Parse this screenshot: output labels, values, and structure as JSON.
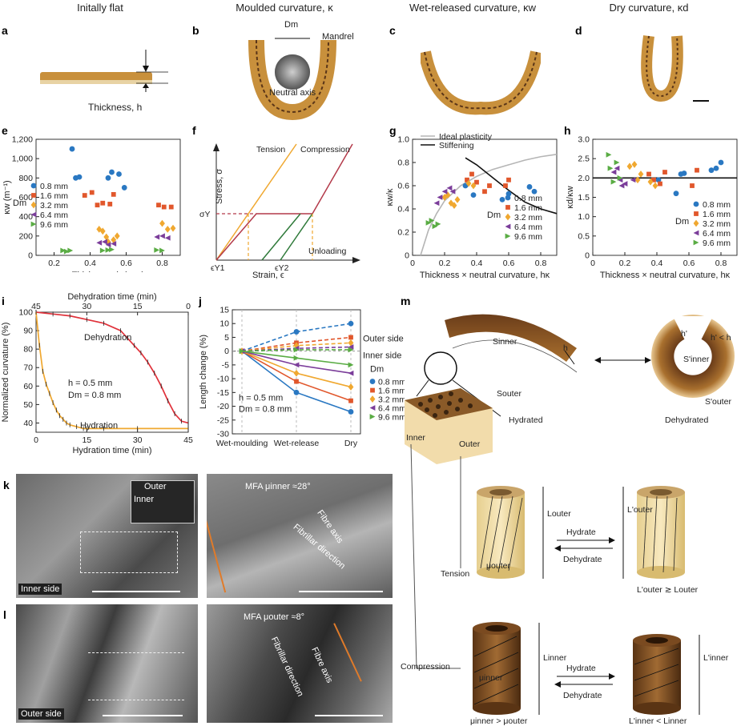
{
  "panels": {
    "a": {
      "letter": "a",
      "title": "Initally flat",
      "label": "Thickness, h"
    },
    "b": {
      "letter": "b",
      "title": "Moulded curvature, κ",
      "dm_label": "Dm",
      "mandrel_label": "Mandrel",
      "axis_label": "Neutral axis"
    },
    "c": {
      "letter": "c",
      "title": "Wet-released curvature, κw"
    },
    "d": {
      "letter": "d",
      "title": "Dry curvature, κd"
    },
    "e": {
      "letter": "e"
    },
    "f": {
      "letter": "f",
      "tension": "Tension",
      "compression": "Compression",
      "unloading": "Unloading",
      "ylabel": "Stress, σ",
      "xlabel": "Strain, ϵ",
      "sigma_y": "σY",
      "eps_y1": "ϵY1",
      "eps_y2": "ϵY2"
    },
    "g": {
      "letter": "g",
      "legend_ideal": "Ideal plasticity",
      "legend_stiff": "Stiffening"
    },
    "h": {
      "letter": "h"
    },
    "i": {
      "letter": "i",
      "dehydration_label": "Dehydration",
      "hydration_label": "Hydration",
      "h_note": "h = 0.5 mm",
      "dm_note": "Dm = 0.8 mm"
    },
    "j": {
      "letter": "j",
      "outer_side": "Outer side",
      "inner_side": "Inner side",
      "dm_head": "Dm",
      "h_note": "h = 0.5 mm",
      "dm_note": "Dm = 0.8 mm"
    },
    "k": {
      "letter": "k",
      "inner": "Inner",
      "outer": "Outer",
      "side": "Inner side",
      "mfa": "MFA μinner ≈28°",
      "fibre_axis": "Fibre axis",
      "fibrillar": "Fibrillar direction"
    },
    "l": {
      "letter": "l",
      "side": "Outer side",
      "mfa": "MFA μouter ≈8°",
      "fibre_axis": "Fibre axis",
      "fibrillar": "Fibrillar direction"
    },
    "m": {
      "letter": "m",
      "s_inner": "Sinner",
      "h": "h",
      "s_outer": "Souter",
      "hydrated": "Hydrated",
      "h_prime": "h'",
      "h_prime_lt": "h' < h",
      "s_prime_inner": "S'inner",
      "s_prime_outer": "S'outer",
      "dehydrated": "Dehydrated",
      "inner": "Inner",
      "outer": "Outer",
      "l_outer": "Louter",
      "l_prime_outer": "L'outer",
      "mu_outer": "μouter",
      "hydrate": "Hydrate",
      "dehydrate": "Dehydrate",
      "tension": "Tension",
      "relation_outer": "L'outer ≳ Louter",
      "l_inner": "Linner",
      "l_prime_inner": "L'inner",
      "mu_inner": "μinner",
      "compression": "Compression",
      "relation_mu": "μinner > μouter",
      "relation_inner": "L'inner < Linner"
    }
  },
  "colors": {
    "d08": "#2a78c2",
    "d16": "#e1572c",
    "d32": "#f0a830",
    "d64": "#7b3d9a",
    "d96": "#5aac44",
    "tension": "#f0a830",
    "compression": "#b33a4a",
    "green": "#2f7a3a",
    "ideal": "#b5b5b5",
    "stiff": "#111111"
  },
  "chart_data": [
    {
      "id": "e",
      "type": "scatter",
      "xlabel": "Thickness, h (mm)",
      "ylabel": "κw (m⁻¹)",
      "xlim": [
        0.1,
        0.9
      ],
      "ylim": [
        0,
        1200
      ],
      "xticks": [
        "0.2",
        "0.4",
        "0.6",
        "0.8"
      ],
      "yticks": [
        "0",
        "200",
        "400",
        "600",
        "800",
        "1,000",
        "1,200"
      ],
      "legend_title": "Dm",
      "series": [
        {
          "name": "0.8 mm",
          "marker": "circle",
          "points": [
            [
              0.3,
              1100
            ],
            [
              0.32,
              800
            ],
            [
              0.34,
              810
            ],
            [
              0.5,
              800
            ],
            [
              0.52,
              860
            ],
            [
              0.56,
              840
            ],
            [
              0.59,
              700
            ]
          ]
        },
        {
          "name": "1.6 mm",
          "marker": "square",
          "points": [
            [
              0.37,
              620
            ],
            [
              0.41,
              650
            ],
            [
              0.44,
              520
            ],
            [
              0.47,
              540
            ],
            [
              0.51,
              530
            ],
            [
              0.53,
              630
            ],
            [
              0.78,
              520
            ],
            [
              0.81,
              500
            ],
            [
              0.85,
              500
            ]
          ]
        },
        {
          "name": "3.2 mm",
          "marker": "diamond",
          "points": [
            [
              0.45,
              270
            ],
            [
              0.47,
              250
            ],
            [
              0.49,
              190
            ],
            [
              0.5,
              140
            ],
            [
              0.53,
              160
            ],
            [
              0.55,
              200
            ],
            [
              0.8,
              330
            ],
            [
              0.83,
              270
            ],
            [
              0.86,
              280
            ]
          ]
        },
        {
          "name": "6.4 mm",
          "marker": "triangle-left",
          "points": [
            [
              0.45,
              130
            ],
            [
              0.48,
              140
            ],
            [
              0.5,
              110
            ],
            [
              0.53,
              120
            ],
            [
              0.77,
              190
            ],
            [
              0.8,
              200
            ],
            [
              0.83,
              180
            ]
          ]
        },
        {
          "name": "9.6 mm",
          "marker": "triangle-right",
          "points": [
            [
              0.25,
              50
            ],
            [
              0.27,
              40
            ],
            [
              0.29,
              50
            ],
            [
              0.47,
              50
            ],
            [
              0.5,
              55
            ],
            [
              0.52,
              60
            ],
            [
              0.77,
              55
            ],
            [
              0.8,
              50
            ]
          ]
        }
      ]
    },
    {
      "id": "g",
      "type": "scatter",
      "xlabel": "Thickness × neutral curvature, hκ",
      "ylabel": "κw/κ",
      "xlim": [
        0,
        0.9
      ],
      "ylim": [
        0,
        1.0
      ],
      "xticks": [
        "0",
        "0.2",
        "0.4",
        "0.6",
        "0.8"
      ],
      "yticks": [
        "0",
        "0.2",
        "0.4",
        "0.6",
        "0.8",
        "1.0"
      ],
      "legend_title": "Dm",
      "series": [
        {
          "name": "0.8 mm",
          "marker": "circle",
          "points": [
            [
              0.33,
              0.6
            ],
            [
              0.38,
              0.52
            ],
            [
              0.56,
              0.48
            ],
            [
              0.6,
              0.53
            ],
            [
              0.73,
              0.59
            ],
            [
              0.76,
              0.55
            ]
          ]
        },
        {
          "name": "1.6 mm",
          "marker": "square",
          "points": [
            [
              0.34,
              0.65
            ],
            [
              0.37,
              0.7
            ],
            [
              0.4,
              0.63
            ],
            [
              0.45,
              0.55
            ],
            [
              0.48,
              0.6
            ],
            [
              0.58,
              0.6
            ],
            [
              0.6,
              0.65
            ]
          ]
        },
        {
          "name": "3.2 mm",
          "marker": "diamond",
          "points": [
            [
              0.2,
              0.5
            ],
            [
              0.22,
              0.52
            ],
            [
              0.24,
              0.45
            ],
            [
              0.26,
              0.43
            ],
            [
              0.28,
              0.48
            ],
            [
              0.35,
              0.62
            ],
            [
              0.38,
              0.6
            ]
          ]
        },
        {
          "name": "6.4 mm",
          "marker": "triangle-left",
          "points": [
            [
              0.15,
              0.45
            ],
            [
              0.17,
              0.5
            ],
            [
              0.2,
              0.55
            ],
            [
              0.23,
              0.58
            ],
            [
              0.25,
              0.55
            ]
          ]
        },
        {
          "name": "9.6 mm",
          "marker": "triangle-right",
          "points": [
            [
              0.1,
              0.28
            ],
            [
              0.12,
              0.3
            ],
            [
              0.14,
              0.25
            ],
            [
              0.16,
              0.27
            ]
          ]
        }
      ],
      "curves": [
        {
          "name": "Ideal plasticity",
          "points": [
            [
              0.05,
              0.0
            ],
            [
              0.1,
              0.22
            ],
            [
              0.15,
              0.36
            ],
            [
              0.2,
              0.47
            ],
            [
              0.3,
              0.6
            ],
            [
              0.4,
              0.68
            ],
            [
              0.5,
              0.74
            ],
            [
              0.6,
              0.78
            ],
            [
              0.7,
              0.82
            ],
            [
              0.8,
              0.85
            ],
            [
              0.9,
              0.87
            ]
          ]
        },
        {
          "name": "Stiffening",
          "points": [
            [
              0.33,
              0.84
            ],
            [
              0.4,
              0.78
            ],
            [
              0.5,
              0.67
            ],
            [
              0.6,
              0.56
            ],
            [
              0.7,
              0.46
            ],
            [
              0.8,
              0.4
            ],
            [
              0.9,
              0.36
            ]
          ]
        }
      ]
    },
    {
      "id": "h",
      "type": "scatter",
      "xlabel": "Thickness × neutral curvature, hκ",
      "ylabel": "κd/κw",
      "xlim": [
        0,
        0.9
      ],
      "ylim": [
        0,
        3.0
      ],
      "xticks": [
        "0",
        "0.2",
        "0.4",
        "0.6",
        "0.8"
      ],
      "yticks": [
        "0",
        "0.5",
        "1.0",
        "1.5",
        "2.0",
        "2.5",
        "3.0"
      ],
      "reference_line": 2.0,
      "legend_title": "Dm",
      "series": [
        {
          "name": "0.8 mm",
          "marker": "circle",
          "points": [
            [
              0.41,
              1.95
            ],
            [
              0.52,
              1.6
            ],
            [
              0.55,
              2.1
            ],
            [
              0.57,
              2.12
            ],
            [
              0.74,
              2.2
            ],
            [
              0.77,
              2.25
            ],
            [
              0.8,
              2.4
            ]
          ]
        },
        {
          "name": "1.6 mm",
          "marker": "square",
          "points": [
            [
              0.35,
              2.1
            ],
            [
              0.38,
              1.95
            ],
            [
              0.42,
              1.85
            ],
            [
              0.45,
              2.15
            ],
            [
              0.62,
              1.8
            ],
            [
              0.65,
              2.2
            ]
          ]
        },
        {
          "name": "3.2 mm",
          "marker": "diamond",
          "points": [
            [
              0.23,
              2.3
            ],
            [
              0.26,
              2.35
            ],
            [
              0.28,
              1.95
            ],
            [
              0.3,
              2.1
            ],
            [
              0.36,
              1.9
            ],
            [
              0.39,
              1.8
            ]
          ]
        },
        {
          "name": "6.4 mm",
          "marker": "triangle-left",
          "points": [
            [
              0.13,
              2.15
            ],
            [
              0.15,
              2.25
            ],
            [
              0.17,
              1.95
            ],
            [
              0.18,
              1.8
            ],
            [
              0.2,
              1.85
            ],
            [
              0.25,
              1.95
            ]
          ]
        },
        {
          "name": "9.6 mm",
          "marker": "triangle-right",
          "points": [
            [
              0.1,
              2.6
            ],
            [
              0.11,
              2.25
            ],
            [
              0.13,
              1.9
            ],
            [
              0.15,
              2.4
            ],
            [
              0.17,
              2.0
            ]
          ]
        }
      ]
    },
    {
      "id": "i",
      "type": "line",
      "xlabel": "Hydration time (min)",
      "x2label": "Dehydration time (min)",
      "ylabel": "Normalized curvature (%)",
      "xlim": [
        0,
        45
      ],
      "ylim": [
        35,
        100
      ],
      "xticks": [
        "0",
        "15",
        "30",
        "45"
      ],
      "x2ticks": [
        "45",
        "30",
        "15",
        "0"
      ],
      "yticks": [
        "40",
        "50",
        "60",
        "70",
        "80",
        "90",
        "100"
      ],
      "series": [
        {
          "name": "Dehydration",
          "x": [
            0,
            5,
            10,
            15,
            20,
            25,
            27,
            29,
            31,
            33,
            35,
            37,
            39,
            41,
            43,
            45
          ],
          "y": [
            100,
            99,
            98,
            96,
            94,
            90,
            86,
            82,
            78,
            73,
            67,
            60,
            52,
            45,
            41,
            40
          ]
        },
        {
          "name": "Hydration",
          "x": [
            0,
            1,
            2,
            3,
            4,
            5,
            6,
            7,
            8,
            9,
            10,
            12,
            14,
            15,
            20,
            30,
            45
          ],
          "y": [
            100,
            82,
            68,
            61,
            56,
            51,
            47,
            44,
            42,
            40,
            39,
            38,
            37,
            37,
            37,
            37,
            37
          ]
        }
      ]
    },
    {
      "id": "j",
      "type": "line",
      "ylabel": "Length change (%)",
      "categories": [
        "Wet-moulding",
        "Wet-release",
        "Dry"
      ],
      "ylim": [
        -30,
        15
      ],
      "yticks": [
        "-30",
        "-25",
        "-20",
        "-15",
        "-10",
        "-5",
        "0",
        "5",
        "10",
        "15"
      ],
      "series": [
        {
          "name": "0.8 mm",
          "side": "outer",
          "values": [
            0,
            7,
            10
          ]
        },
        {
          "name": "1.6 mm",
          "side": "outer",
          "values": [
            0,
            3,
            5
          ]
        },
        {
          "name": "3.2 mm",
          "side": "outer",
          "values": [
            0,
            2,
            3
          ]
        },
        {
          "name": "6.4 mm",
          "side": "outer",
          "values": [
            0,
            1,
            1.5
          ]
        },
        {
          "name": "9.6 mm",
          "side": "outer",
          "values": [
            0,
            0.5,
            0.5
          ]
        },
        {
          "name": "0.8 mm",
          "side": "inner",
          "values": [
            0,
            -15,
            -22
          ]
        },
        {
          "name": "1.6 mm",
          "side": "inner",
          "values": [
            0,
            -11,
            -18
          ]
        },
        {
          "name": "3.2 mm",
          "side": "inner",
          "values": [
            0,
            -8,
            -13
          ]
        },
        {
          "name": "6.4 mm",
          "side": "inner",
          "values": [
            0,
            -5,
            -8
          ]
        },
        {
          "name": "9.6 mm",
          "side": "inner",
          "values": [
            0,
            -2.5,
            -5
          ]
        }
      ]
    }
  ]
}
